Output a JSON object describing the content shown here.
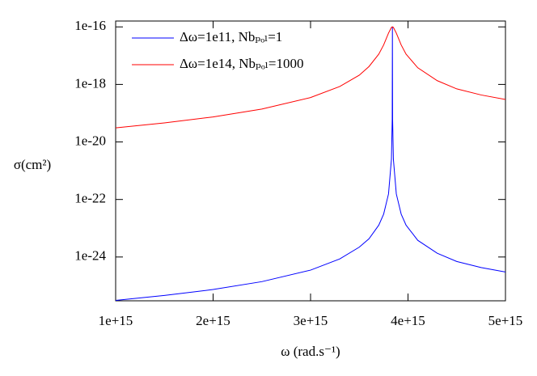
{
  "chart_data": {
    "type": "line",
    "xlabel": "ω (rad.s⁻¹)",
    "ylabel": "σ(cm²)",
    "x": [
      1000000000000000.0,
      1500000000000000.0,
      2000000000000000.0,
      2500000000000000.0,
      3000000000000000.0,
      3300000000000000.0,
      3500000000000000.0,
      3600000000000000.0,
      3700000000000000.0,
      3750000000000000.0,
      3800000000000000.0,
      3830000000000000.0,
      3838000000000000.0,
      3840000000000000.0,
      3842000000000000.0,
      3850000000000000.0,
      3880000000000000.0,
      3930000000000000.0,
      3980000000000000.0,
      4100000000000000.0,
      4300000000000000.0,
      4500000000000000.0,
      4750000000000000.0,
      5000000000000000.0
    ],
    "series": [
      {
        "name": "Δω=1e11, Nbₚₒₗ=1",
        "color": "#0000ff",
        "values": [
          3.1e-26,
          4.6e-26,
          7.4e-26,
          1.39e-25,
          3.5e-25,
          8.6e-25,
          2.2e-24,
          4.3e-24,
          1.28e-23,
          3.1e-23,
          1.56e-22,
          2.5e-21,
          6.2e-20,
          1e-16,
          6.2e-20,
          2.5e-21,
          1.56e-22,
          3.1e-23,
          1.28e-23,
          3.8e-24,
          1.35e-24,
          7e-25,
          4.3e-25,
          3e-25
        ]
      },
      {
        "name": "Δω=1e14, Nbₚₒₗ=1000",
        "color": "#ff0000",
        "values": [
          3.1e-20,
          4.6e-20,
          7.4e-20,
          1.39e-19,
          3.5e-19,
          8.5e-19,
          2.1e-18,
          4.2e-18,
          1.13e-17,
          2.36e-17,
          6.1e-17,
          9.6e-17,
          9.98e-17,
          1e-16,
          9.98e-17,
          9.6e-17,
          6.1e-17,
          2.36e-17,
          1.13e-17,
          3.8e-18,
          1.35e-18,
          7e-19,
          4.3e-19,
          3e-19
        ]
      }
    ],
    "xlim": [
      1000000000000000.0,
      5000000000000000.0
    ],
    "xticks": [
      {
        "value": 1000000000000000.0,
        "label": "1e+15"
      },
      {
        "value": 2000000000000000.0,
        "label": "2e+15"
      },
      {
        "value": 3000000000000000.0,
        "label": "3e+15"
      },
      {
        "value": 4000000000000000.0,
        "label": "4e+15"
      },
      {
        "value": 5000000000000000.0,
        "label": "5e+15"
      }
    ],
    "ylim": [
      3e-26,
      1.6e-16
    ],
    "yticks": [
      {
        "value": 1e-16,
        "label": "1e-16"
      },
      {
        "value": 1e-18,
        "label": "1e-18"
      },
      {
        "value": 1e-20,
        "label": "1e-20"
      },
      {
        "value": 1e-22,
        "label": "1e-22"
      },
      {
        "value": 1e-24,
        "label": "1e-24"
      }
    ],
    "ylog": true,
    "grid": false,
    "legend": "top-left"
  }
}
